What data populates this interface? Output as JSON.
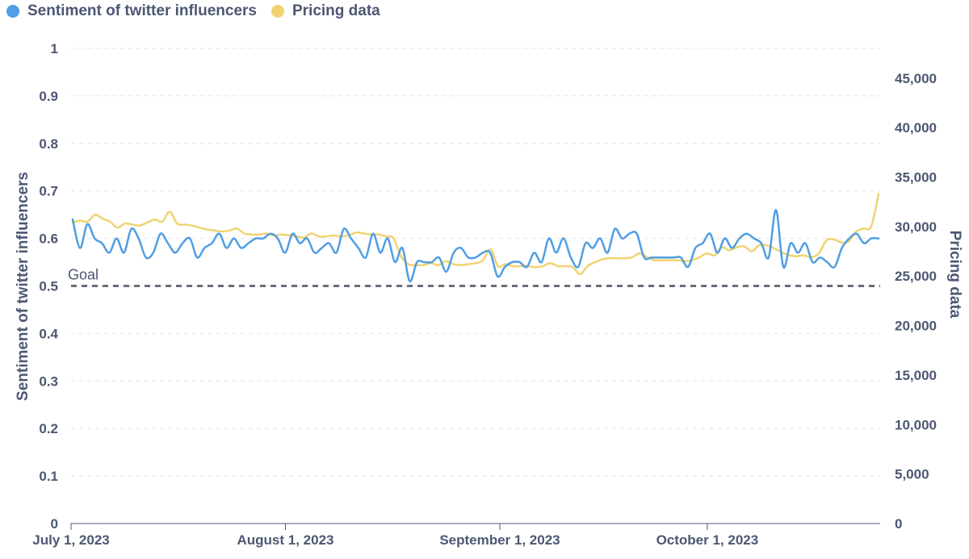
{
  "chart_data": {
    "type": "line",
    "x_start": "2023-07-01",
    "x_end": "2023-10-26",
    "x_tick_labels": [
      "July 1, 2023",
      "August 1, 2023",
      "September 1, 2023",
      "October 1, 2023"
    ],
    "x_tick_days": [
      0,
      31,
      62,
      92
    ],
    "x_max_day": 117,
    "ylabel_left": "Sentiment of twitter influencers",
    "ylabel_right": "Pricing data",
    "ylim_left": [
      0,
      1
    ],
    "ylim_right": [
      0,
      48000
    ],
    "y_ticks_left": [
      0,
      0.1,
      0.2,
      0.3,
      0.4,
      0.5,
      0.6,
      0.7,
      0.8,
      0.9,
      1
    ],
    "y_tick_labels_left": [
      "0",
      "0.1",
      "0.2",
      "0.3",
      "0.4",
      "0.5",
      "0.6",
      "0.7",
      "0.8",
      "0.9",
      "1"
    ],
    "y_ticks_right": [
      0,
      5000,
      10000,
      15000,
      20000,
      25000,
      30000,
      35000,
      40000,
      45000
    ],
    "y_tick_labels_right": [
      "0",
      "5,000",
      "10,000",
      "15,000",
      "20,000",
      "25,000",
      "30,000",
      "35,000",
      "40,000",
      "45,000"
    ],
    "grid": true,
    "goal": {
      "label": "Goal",
      "value": 0.5
    },
    "legend_position": "top-left",
    "series": [
      {
        "name": "Sentiment of twitter influencers",
        "axis": "left",
        "color": "#509ee3",
        "values": [
          0.64,
          0.58,
          0.63,
          0.6,
          0.59,
          0.57,
          0.6,
          0.57,
          0.62,
          0.6,
          0.56,
          0.57,
          0.61,
          0.59,
          0.57,
          0.59,
          0.6,
          0.56,
          0.58,
          0.59,
          0.61,
          0.58,
          0.6,
          0.58,
          0.59,
          0.6,
          0.6,
          0.61,
          0.6,
          0.57,
          0.61,
          0.59,
          0.6,
          0.57,
          0.58,
          0.59,
          0.57,
          0.62,
          0.6,
          0.58,
          0.56,
          0.61,
          0.57,
          0.6,
          0.55,
          0.58,
          0.51,
          0.55,
          0.55,
          0.55,
          0.56,
          0.53,
          0.57,
          0.58,
          0.56,
          0.56,
          0.57,
          0.57,
          0.52,
          0.54,
          0.55,
          0.55,
          0.54,
          0.57,
          0.55,
          0.6,
          0.57,
          0.6,
          0.56,
          0.54,
          0.59,
          0.58,
          0.6,
          0.57,
          0.62,
          0.6,
          0.61,
          0.61,
          0.56,
          0.56,
          0.56,
          0.56,
          0.56,
          0.56,
          0.54,
          0.58,
          0.59,
          0.61,
          0.57,
          0.6,
          0.58,
          0.6,
          0.61,
          0.6,
          0.59,
          0.56,
          0.66,
          0.54,
          0.59,
          0.57,
          0.59,
          0.55,
          0.56,
          0.55,
          0.54,
          0.58,
          0.6,
          0.61,
          0.59,
          0.6,
          0.6
        ]
      },
      {
        "name": "Pricing data",
        "axis": "right",
        "color": "#f0d372",
        "values": [
          30400,
          30600,
          30500,
          31200,
          30800,
          30500,
          29900,
          30300,
          30200,
          30100,
          30400,
          30700,
          30500,
          31500,
          30300,
          30200,
          30100,
          29900,
          29700,
          29600,
          29500,
          29600,
          29800,
          29300,
          29200,
          29200,
          29300,
          29100,
          29200,
          29100,
          29000,
          28900,
          29300,
          29000,
          29000,
          29100,
          29000,
          29100,
          29400,
          29300,
          29200,
          29200,
          29000,
          28800,
          27000,
          26200,
          26100,
          26100,
          26300,
          26100,
          26500,
          26200,
          26100,
          26200,
          26300,
          26600,
          27700,
          26000,
          26200,
          26000,
          26000,
          26000,
          25900,
          26000,
          26300,
          26000,
          26000,
          25900,
          25200,
          26000,
          26400,
          26700,
          26800,
          26800,
          26800,
          26900,
          27300,
          26900,
          26600,
          26600,
          26600,
          26600,
          26500,
          26600,
          26900,
          27300,
          27100,
          27900,
          27600,
          27900,
          28000,
          27500,
          28100,
          28100,
          27800,
          27400,
          27100,
          27000,
          27100,
          26900,
          27300,
          28600,
          28700,
          28400,
          28500,
          29500,
          29800,
          30000,
          33300
        ]
      }
    ]
  }
}
